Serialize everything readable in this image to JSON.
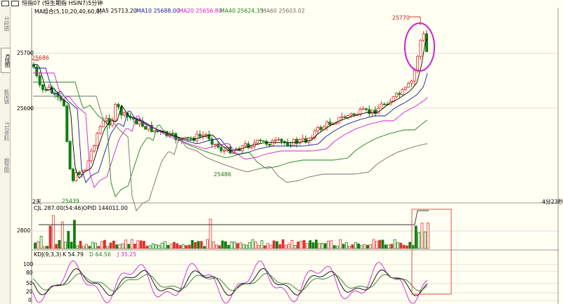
{
  "window": {
    "title_icons": "double-square-icon",
    "title": "恒指07 (恒生期指 HSIN7)5分钟"
  },
  "left_tabs": [
    {
      "label": "分时图",
      "active": false
    },
    {
      "label": "K线图",
      "active": true
    },
    {
      "label": "新闻链",
      "active": false
    },
    {
      "label": "F10资料",
      "active": false
    },
    {
      "label": "期货图",
      "active": false
    }
  ],
  "ma_legend": {
    "name": "MA组合(5,10,20,40,60,0)",
    "items": [
      {
        "label": "MA5 25713.20",
        "color": "#000000"
      },
      {
        "label": "MA10 25688.00",
        "color": "#1a1aa0"
      },
      {
        "label": "MA20 25656.80",
        "color": "#d020d0"
      },
      {
        "label": "MA40 25624.35",
        "color": "#208020"
      },
      {
        "label": "MA60 25603.02",
        "color": "#707070"
      }
    ]
  },
  "price_axis": [
    "25700",
    "25600"
  ],
  "annotations": {
    "high_left": "25686",
    "high_right": "25770",
    "low_mid": "25486",
    "low_left": "25439",
    "bottom_left": "2天",
    "bottom_right": "4分23秒"
  },
  "volume_legend": {
    "cjl": "CJL 287.00(54:46)",
    "opid": "OPID 144011.00"
  },
  "volume_axis": [
    "2800"
  ],
  "kdj_legend": {
    "name": "KDJ(9,3,3)",
    "k": "K 54.79",
    "d": "D 64.56",
    "j": "J 35.25",
    "k_color": "#000000",
    "d_color": "#2a7a2a",
    "j_color": "#d020d0"
  },
  "kdj_axis": [
    "100",
    "80",
    "50",
    "20",
    "0"
  ],
  "colors": {
    "up": "#e03030",
    "down": "#108010",
    "highlight_ellipse": "#d020d0",
    "highlight_box": "#e05050"
  }
}
